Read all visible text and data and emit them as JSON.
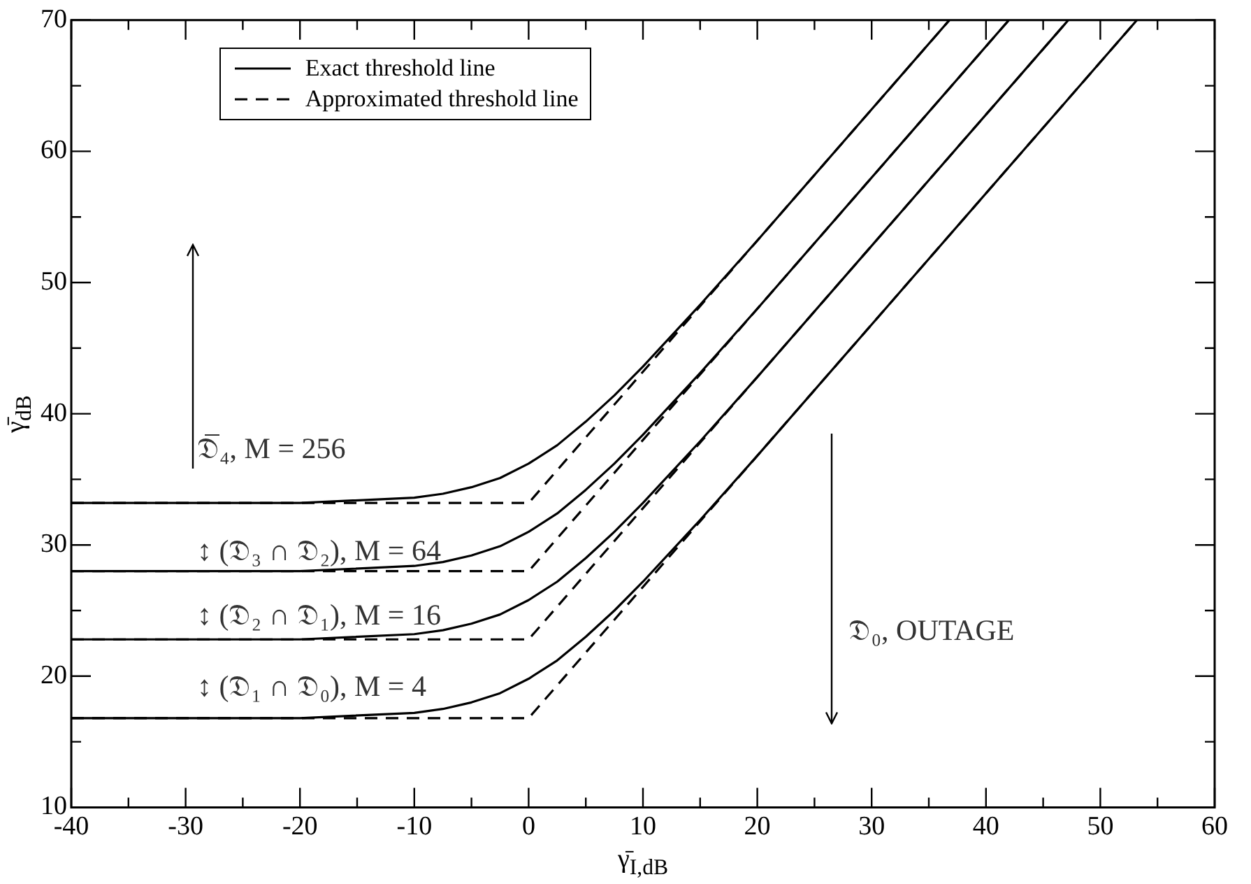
{
  "chart_data": {
    "type": "line",
    "xlabel": "γ̄$_{I,dB}$",
    "ylabel": "γ̄$_{dB}$",
    "xlim": [
      -40,
      60
    ],
    "ylim": [
      10,
      70
    ],
    "xticks": [
      -40,
      {
        "value": -35,
        "label": null
      },
      -30,
      {
        "value": -25,
        "label": null
      },
      -20,
      {
        "value": -15,
        "label": null
      },
      -10,
      {
        "value": -5,
        "label": null
      },
      0,
      {
        "value": 5,
        "label": null
      },
      10,
      {
        "value": 15,
        "label": null
      },
      20,
      {
        "value": 25,
        "label": null
      },
      30,
      {
        "value": 35,
        "label": null
      },
      40,
      {
        "value": 45,
        "label": null
      },
      50,
      {
        "value": 55,
        "label": null
      },
      60
    ],
    "yticks": [
      10,
      {
        "value": 15,
        "label": null
      },
      20,
      {
        "value": 25,
        "label": null
      },
      30,
      {
        "value": 35,
        "label": null
      },
      40,
      {
        "value": 45,
        "label": null
      },
      50,
      {
        "value": 55,
        "label": null
      },
      60,
      {
        "value": 65,
        "label": null
      },
      70
    ],
    "grid": false,
    "legend": "top left",
    "marker": "none",
    "annotations": [
      "𝔇̅₄, M = 256",
      "↕ (𝔇₃ ∩ 𝔇₂), M = 64",
      "↕ (𝔇₂ ∩ 𝔇₁), M = 16",
      "↕ (𝔇₁ ∩ 𝔇₀), M = 4",
      "𝔇₀, OUTAGE"
    ],
    "series": [
      {
        "name": "Exact threshold line",
        "color": "#000000",
        "line_style": "solid",
        "x": [
          -40,
          -20,
          -10,
          -7.5,
          -5,
          -2.5,
          0,
          2.5,
          5,
          7.5,
          10,
          15,
          20,
          53.2
        ],
        "values": [
          16.8,
          16.8,
          17.2,
          17.5,
          18.0,
          18.7,
          19.8,
          21.2,
          23.0,
          25.0,
          27.2,
          31.9,
          36.8,
          70
        ]
      },
      {
        "name": "Approximated threshold line",
        "color": "#000000",
        "line_style": "dashed",
        "x": [
          -40,
          0,
          53.2
        ],
        "values": [
          16.8,
          16.8,
          70
        ]
      },
      {
        "color": "#000000",
        "line_style": "solid",
        "x": [
          -40,
          -20,
          -10,
          -7.5,
          -5,
          -2.5,
          0,
          2.5,
          5,
          7.5,
          10,
          15,
          20,
          47.2
        ],
        "values": [
          22.8,
          22.8,
          23.2,
          23.5,
          24.0,
          24.7,
          25.8,
          27.2,
          29.0,
          31.0,
          33.2,
          37.9,
          42.8,
          70
        ]
      },
      {
        "color": "#000000",
        "line_style": "dashed",
        "x": [
          -40,
          0,
          47.2
        ],
        "values": [
          22.8,
          22.8,
          70
        ]
      },
      {
        "color": "#000000",
        "line_style": "solid",
        "x": [
          -40,
          -20,
          -10,
          -7.5,
          -5,
          -2.5,
          0,
          2.5,
          5,
          7.5,
          10,
          15,
          20,
          42
        ],
        "values": [
          28.0,
          28.0,
          28.4,
          28.7,
          29.2,
          29.9,
          31.0,
          32.4,
          34.2,
          36.2,
          38.4,
          43.1,
          48.0,
          70
        ]
      },
      {
        "color": "#000000",
        "line_style": "dashed",
        "x": [
          -40,
          0,
          42
        ],
        "values": [
          28.0,
          28.0,
          70
        ]
      },
      {
        "color": "#000000",
        "line_style": "solid",
        "x": [
          -40,
          -20,
          -10,
          -7.5,
          -5,
          -2.5,
          0,
          2.5,
          5,
          7.5,
          10,
          15,
          20,
          36.8
        ],
        "values": [
          33.2,
          33.2,
          33.6,
          33.9,
          34.4,
          35.1,
          36.2,
          37.6,
          39.4,
          41.4,
          43.6,
          48.3,
          53.2,
          70
        ]
      },
      {
        "color": "#000000",
        "line_style": "dashed",
        "x": [
          -40,
          0,
          36.8
        ],
        "values": [
          33.2,
          33.2,
          70
        ]
      }
    ]
  }
}
